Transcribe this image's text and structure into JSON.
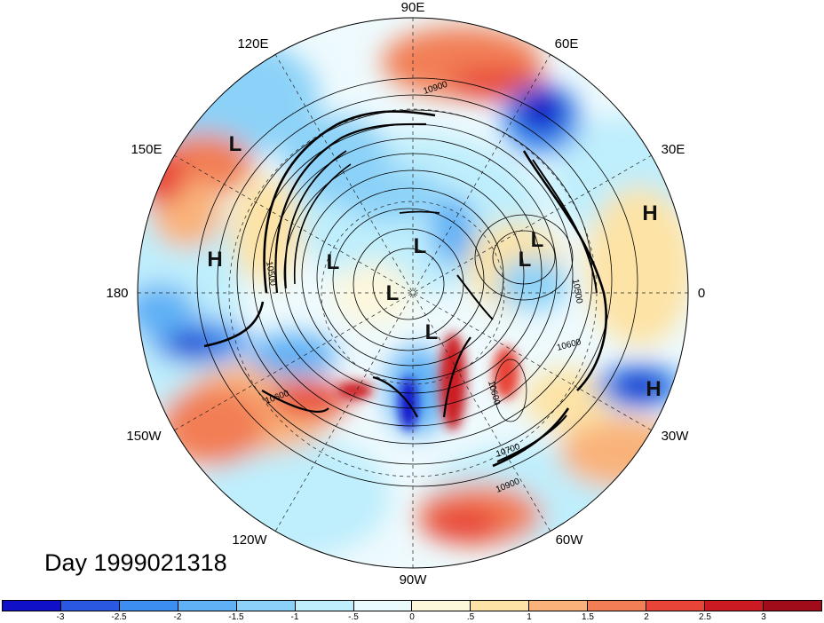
{
  "title": "Day 1999021318",
  "longitude_labels": [
    "90E",
    "60E",
    "30E",
    "0",
    "30W",
    "60W",
    "90W",
    "120W",
    "150W",
    "180",
    "150E",
    "120E"
  ],
  "pressure_labels": [
    "H",
    "H",
    "H",
    "L",
    "L",
    "L",
    "L",
    "L",
    "L",
    "L"
  ],
  "contour_labels": [
    "10900",
    "10600",
    "10500",
    "10600",
    "10700",
    "10900",
    "10600",
    "10500"
  ],
  "colorbar": {
    "ticks": [
      "-3",
      "-2.5",
      "-2",
      "-1.5",
      "-1",
      "-.5",
      "0",
      ".5",
      "1",
      "1.5",
      "2",
      "2.5",
      "3"
    ],
    "colors": [
      "#1010c8",
      "#2a58e0",
      "#3c8ef0",
      "#5fb0f5",
      "#8cd2f8",
      "#bfeefc",
      "#e9fbfd",
      "#fdf7dc",
      "#fde3a6",
      "#f9b37a",
      "#f27e55",
      "#e84538",
      "#cc1a22",
      "#a00c1a"
    ]
  }
}
